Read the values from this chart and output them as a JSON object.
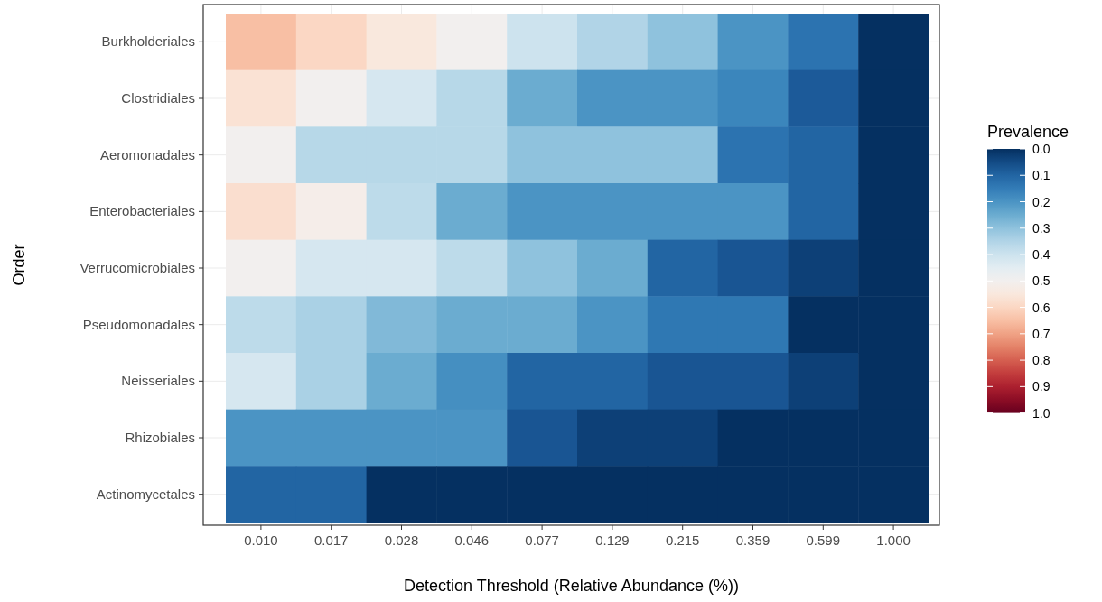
{
  "chart_data": {
    "type": "heatmap",
    "xlabel": "Detection Threshold (Relative Abundance (%))",
    "ylabel": "Order",
    "legend_title": "Prevalence",
    "categories": [
      "0.010",
      "0.017",
      "0.028",
      "0.046",
      "0.077",
      "0.129",
      "0.215",
      "0.359",
      "0.599",
      "1.000"
    ],
    "y_categories": [
      "Burkholderiales",
      "Clostridiales",
      "Aeromonadales",
      "Enterobacteriales",
      "Verrucomicrobiales",
      "Pseudomonadales",
      "Neisseriales",
      "Rhizobiales",
      "Actinomycetales"
    ],
    "cells": [
      [
        0.65,
        0.6,
        0.55,
        0.5,
        0.4,
        0.35,
        0.3,
        0.2,
        0.13,
        0.0
      ],
      [
        0.57,
        0.5,
        0.42,
        0.36,
        0.25,
        0.2,
        0.2,
        0.17,
        0.08,
        0.0
      ],
      [
        0.5,
        0.36,
        0.36,
        0.36,
        0.3,
        0.3,
        0.3,
        0.13,
        0.1,
        0.0
      ],
      [
        0.58,
        0.52,
        0.37,
        0.25,
        0.2,
        0.2,
        0.2,
        0.2,
        0.1,
        0.0
      ],
      [
        0.5,
        0.42,
        0.42,
        0.37,
        0.3,
        0.25,
        0.1,
        0.07,
        0.03,
        0.0
      ],
      [
        0.37,
        0.34,
        0.28,
        0.25,
        0.25,
        0.2,
        0.14,
        0.14,
        0.0,
        0.0
      ],
      [
        0.42,
        0.34,
        0.25,
        0.19,
        0.1,
        0.1,
        0.07,
        0.07,
        0.03,
        0.0
      ],
      [
        0.2,
        0.2,
        0.2,
        0.2,
        0.07,
        0.03,
        0.03,
        0.0,
        0.0,
        0.0
      ],
      [
        0.1,
        0.1,
        0.0,
        0.0,
        0.0,
        0.0,
        0.0,
        0.0,
        0.0,
        0.0
      ]
    ],
    "clim": [
      0,
      1
    ],
    "cticks": [
      {
        "value": 0,
        "label": "0.0"
      },
      {
        "value": 0.1,
        "label": "0.1"
      },
      {
        "value": 0.2,
        "label": "0.2"
      },
      {
        "value": 0.3,
        "label": "0.3"
      },
      {
        "value": 0.4,
        "label": "0.4"
      },
      {
        "value": 0.5,
        "label": "0.5"
      },
      {
        "value": 0.6,
        "label": "0.6"
      },
      {
        "value": 0.7,
        "label": "0.7"
      },
      {
        "value": 0.8,
        "label": "0.8"
      },
      {
        "value": 0.9,
        "label": "0.9"
      },
      {
        "value": 1,
        "label": "1.0"
      }
    ],
    "grid": true
  }
}
